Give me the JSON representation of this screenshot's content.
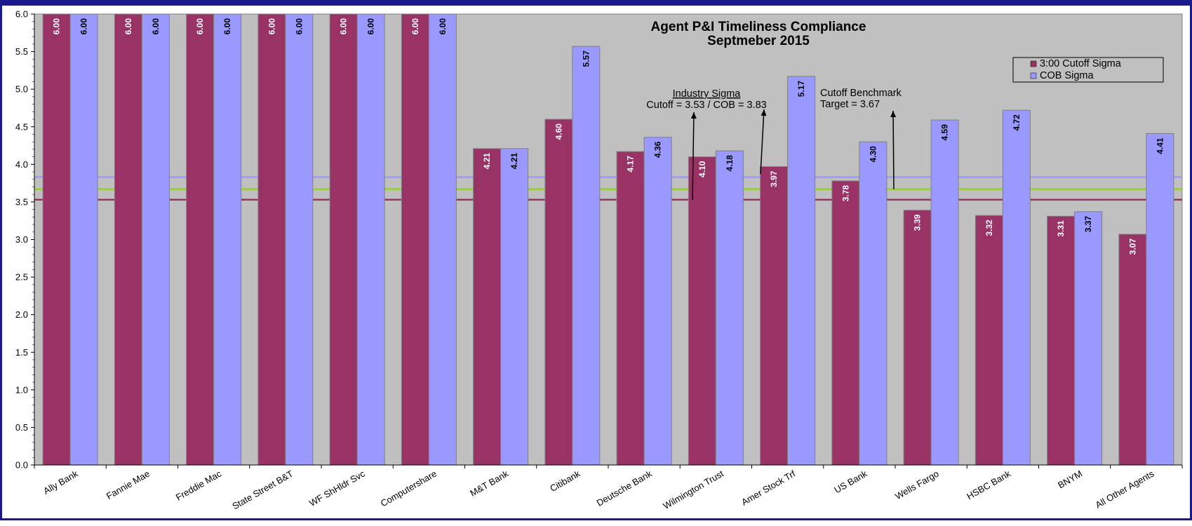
{
  "chart_data": {
    "type": "bar",
    "title": "Agent P&I Timeliness Compliance",
    "subtitle": "Septmeber 2015",
    "categories": [
      "Ally Bank",
      "Fannie Mae",
      "Freddie Mac",
      "State Street B&T",
      "WF ShHldr Svc",
      "Computershare",
      "M&T Bank",
      "Citibank",
      "Deutsche Bank",
      "Wilmington Trust",
      "Amer Stock Trf",
      "US Bank",
      "Wells Fargo",
      "HSBC Bank",
      "BNYM",
      "All Other Agents"
    ],
    "series": [
      {
        "name": "3:00 Cutoff Sigma",
        "color": "#993366",
        "label_color": "#ffffff",
        "values": [
          6.0,
          6.0,
          6.0,
          6.0,
          6.0,
          6.0,
          4.21,
          4.6,
          4.17,
          4.1,
          3.97,
          3.78,
          3.39,
          3.32,
          3.31,
          3.07
        ]
      },
      {
        "name": "COB Sigma",
        "color": "#9999ff",
        "label_color": "#000000",
        "values": [
          6.0,
          6.0,
          6.0,
          6.0,
          6.0,
          6.0,
          4.21,
          5.57,
          4.36,
          4.18,
          5.17,
          4.3,
          4.59,
          4.72,
          3.37,
          4.41
        ]
      }
    ],
    "y_ticks": [
      "0.0",
      "0.5",
      "1.0",
      "1.5",
      "2.0",
      "2.5",
      "3.0",
      "3.5",
      "4.0",
      "4.5",
      "5.0",
      "5.5",
      "6.0"
    ],
    "ylim": [
      0,
      6
    ],
    "grid": false,
    "legend_position": "top-right",
    "reference_lines": [
      {
        "name": "Industry Sigma Cutoff",
        "value": 3.53,
        "color": "#993366"
      },
      {
        "name": "Cutoff Benchmark Target",
        "value": 3.67,
        "color": "#99cc33"
      },
      {
        "name": "Industry Sigma COB",
        "value": 3.83,
        "color": "#9999ff"
      }
    ],
    "annotations": {
      "industry_heading": "Industry Sigma",
      "industry_values": "Cutoff = 3.53 / COB = 3.83",
      "benchmark_heading": "Cutoff Benchmark",
      "benchmark_values": "Target  = 3.67"
    },
    "plot_background": "#c0c0c0"
  }
}
